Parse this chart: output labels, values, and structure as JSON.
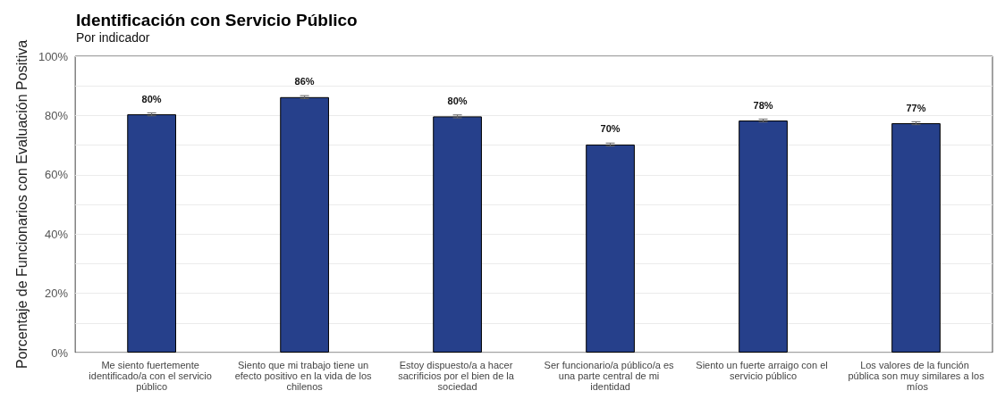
{
  "chart_data": {
    "type": "bar",
    "title": "Identificación con Servicio Público",
    "subtitle": "Por indicador",
    "ylabel": "Porcentaje de Funcionarios con Evaluación Positiva",
    "categories": [
      "Me siento fuertemente identificado/a con el servicio público",
      "Siento que mi trabajo tiene un efecto positivo en la vida de los chilenos",
      "Estoy dispuesto/a a hacer sacrificios por el bien de la sociedad",
      "Ser funcionario/a público/a es una parte central de mi identidad",
      "Siento un fuerte arraigo con el servicio público",
      "Los valores de la función pública son muy similares a los míos"
    ],
    "values": [
      80.4,
      86.2,
      79.7,
      70.2,
      78.3,
      77.4
    ],
    "value_labels": [
      "80%",
      "86%",
      "80%",
      "70%",
      "78%",
      "77%"
    ],
    "errors": [
      0.5,
      0.5,
      0.5,
      0.5,
      0.5,
      0.5
    ],
    "color": "#26408b",
    "ylim": [
      0,
      100
    ],
    "yticks": [
      {
        "value": 0,
        "label": "0%"
      },
      {
        "value": 10,
        "label": null
      },
      {
        "value": 20,
        "label": "20%"
      },
      {
        "value": 30,
        "label": null
      },
      {
        "value": 40,
        "label": "40%"
      },
      {
        "value": 50,
        "label": null
      },
      {
        "value": 60,
        "label": "60%"
      },
      {
        "value": 70,
        "label": null
      },
      {
        "value": 80,
        "label": "80%"
      },
      {
        "value": 90,
        "label": null
      },
      {
        "value": 100,
        "label": "100%"
      }
    ],
    "grid": "y"
  }
}
